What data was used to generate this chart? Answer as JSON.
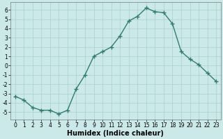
{
  "x": [
    0,
    1,
    2,
    3,
    4,
    5,
    6,
    7,
    8,
    9,
    10,
    11,
    12,
    13,
    14,
    15,
    16,
    17,
    18,
    19,
    20,
    21,
    22,
    23
  ],
  "y": [
    -3.3,
    -3.7,
    -4.5,
    -4.8,
    -4.8,
    -5.2,
    -4.8,
    -2.5,
    -1.0,
    1.0,
    1.5,
    2.0,
    3.2,
    4.8,
    5.3,
    6.2,
    5.8,
    5.7,
    4.5,
    1.5,
    0.7,
    0.1,
    -0.8,
    -1.7
  ],
  "line_color": "#2e7d6e",
  "marker": "+",
  "marker_size": 4,
  "marker_linewidth": 1.0,
  "background_color": "#cce9e9",
  "grid_color": "#aacfcf",
  "xlabel": "Humidex (Indice chaleur)",
  "xlabel_fontsize": 7,
  "ylim": [
    -5.8,
    6.8
  ],
  "xlim": [
    -0.5,
    23.5
  ],
  "yticks": [
    -5,
    -4,
    -3,
    -2,
    -1,
    0,
    1,
    2,
    3,
    4,
    5,
    6
  ],
  "xticks": [
    0,
    1,
    2,
    3,
    4,
    5,
    6,
    7,
    8,
    9,
    10,
    11,
    12,
    13,
    14,
    15,
    16,
    17,
    18,
    19,
    20,
    21,
    22,
    23
  ],
  "ytick_labels": [
    "-5",
    "-4",
    "-3",
    "-2",
    "-1",
    "0",
    "1",
    "2",
    "3",
    "4",
    "5",
    "6"
  ],
  "xtick_labels": [
    "0",
    "1",
    "2",
    "3",
    "4",
    "5",
    "6",
    "7",
    "8",
    "9",
    "10",
    "11",
    "12",
    "13",
    "14",
    "15",
    "16",
    "17",
    "18",
    "19",
    "20",
    "21",
    "22",
    "23"
  ],
  "tick_fontsize": 5.5,
  "linewidth": 1.0
}
